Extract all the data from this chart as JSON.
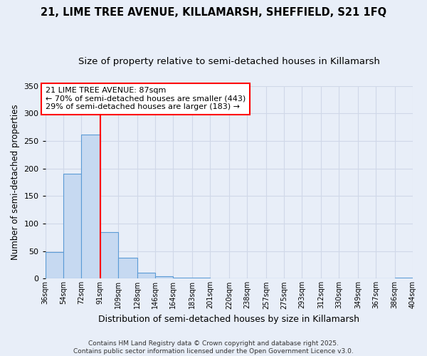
{
  "title": "21, LIME TREE AVENUE, KILLAMARSH, SHEFFIELD, S21 1FQ",
  "subtitle": "Size of property relative to semi-detached houses in Killamarsh",
  "xlabel": "Distribution of semi-detached houses by size in Killamarsh",
  "ylabel": "Number of semi-detached properties",
  "bins": [
    36,
    54,
    72,
    91,
    109,
    128,
    146,
    164,
    183,
    201,
    220,
    238,
    257,
    275,
    293,
    312,
    330,
    349,
    367,
    386,
    404
  ],
  "bin_labels": [
    "36sqm",
    "54sqm",
    "72sqm",
    "91sqm",
    "109sqm",
    "128sqm",
    "146sqm",
    "164sqm",
    "183sqm",
    "201sqm",
    "220sqm",
    "238sqm",
    "257sqm",
    "275sqm",
    "293sqm",
    "312sqm",
    "330sqm",
    "349sqm",
    "367sqm",
    "386sqm",
    "404sqm"
  ],
  "values": [
    48,
    190,
    262,
    85,
    38,
    11,
    4,
    2,
    2,
    0,
    0,
    0,
    0,
    0,
    0,
    0,
    0,
    0,
    0,
    2
  ],
  "bar_color": "#c6d9f1",
  "bar_edge_color": "#5b9bd5",
  "grid_color": "#d0d8e8",
  "bg_color": "#e8eef8",
  "red_line_x": 91,
  "annotation_text": "21 LIME TREE AVENUE: 87sqm\n← 70% of semi-detached houses are smaller (443)\n29% of semi-detached houses are larger (183) →",
  "annotation_box_color": "white",
  "annotation_box_edge_color": "red",
  "footer_text": "Contains HM Land Registry data © Crown copyright and database right 2025.\nContains public sector information licensed under the Open Government Licence v3.0.",
  "ylim": [
    0,
    350
  ],
  "yticks": [
    0,
    50,
    100,
    150,
    200,
    250,
    300,
    350
  ],
  "title_fontsize": 10.5,
  "subtitle_fontsize": 9.5
}
